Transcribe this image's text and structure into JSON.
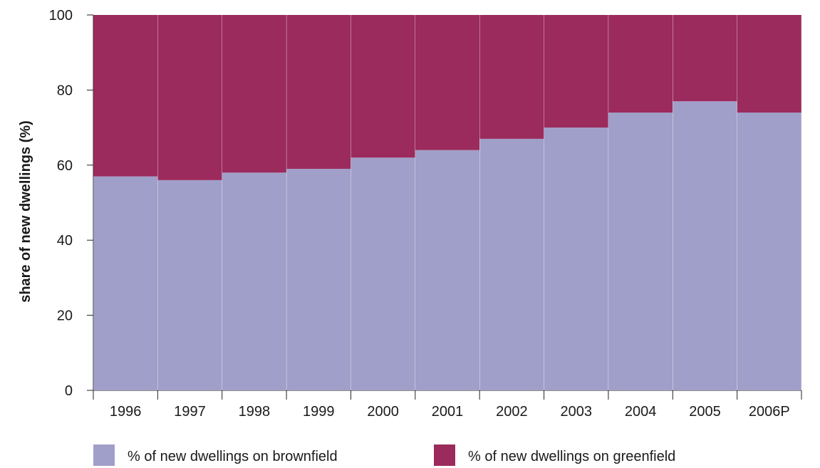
{
  "chart_data": {
    "type": "bar",
    "stacked": true,
    "title": "",
    "xlabel": "",
    "ylabel": "share of new dwellings (%)",
    "ylim": [
      0,
      100
    ],
    "yticks": [
      0,
      20,
      40,
      60,
      80,
      100
    ],
    "grid": false,
    "legend_position": "bottom",
    "categories": [
      "1996",
      "1997",
      "1998",
      "1999",
      "2000",
      "2001",
      "2002",
      "2003",
      "2004",
      "2005",
      "2006P"
    ],
    "series": [
      {
        "name": "% of new dwellings on brownfield",
        "color": "#a09fc9",
        "values": [
          57,
          56,
          58,
          59,
          62,
          64,
          67,
          70,
          74,
          77,
          74
        ]
      },
      {
        "name": "% of new dwellings on greenfield",
        "color": "#9b2b5c",
        "values": [
          43,
          44,
          42,
          41,
          38,
          36,
          33,
          30,
          26,
          23,
          26
        ]
      }
    ]
  }
}
